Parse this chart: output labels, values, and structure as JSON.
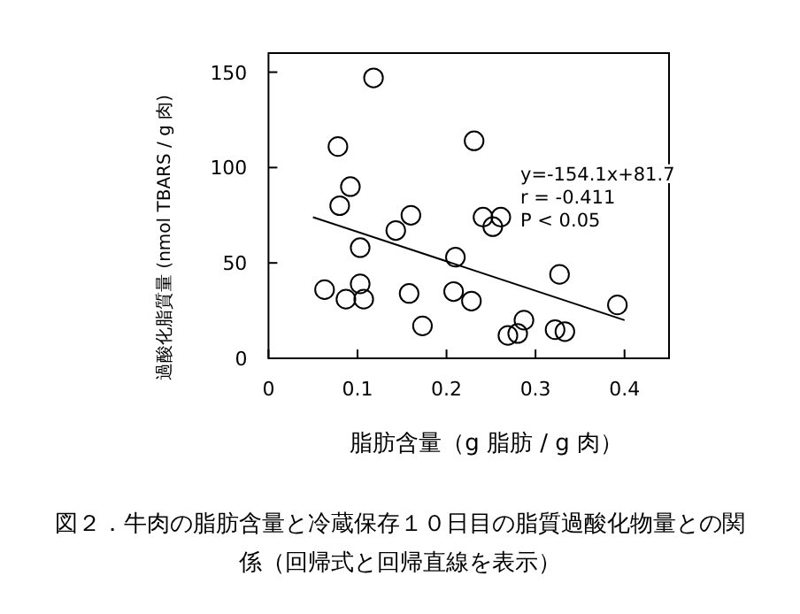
{
  "chart_data": {
    "type": "scatter",
    "title": "図２．牛肉の脂肪含量と冷蔵保存１０日目の脂質過酸化物量との関係（回帰式と回帰直線を表示）",
    "xlabel": "脂肪含量（g 脂肪 / g 肉）",
    "ylabel": "過酸化脂質量 (nmol TBARS / g 肉)",
    "xlim": [
      0,
      0.45
    ],
    "ylim": [
      0,
      160
    ],
    "xticks": [
      0,
      0.1,
      0.2,
      0.3,
      0.4
    ],
    "yticks": [
      0,
      50,
      100,
      150
    ],
    "grid": false,
    "annotations": [
      "y=-154.1x+81.7",
      "r = -0.411",
      "P < 0.05"
    ],
    "series": [
      {
        "marker": "circle",
        "color": "#000000",
        "x": [
          0.063,
          0.078,
          0.08,
          0.087,
          0.092,
          0.103,
          0.103,
          0.107,
          0.118,
          0.143,
          0.158,
          0.16,
          0.173,
          0.208,
          0.21,
          0.228,
          0.231,
          0.241,
          0.252,
          0.261,
          0.269,
          0.28,
          0.287,
          0.322,
          0.327,
          0.333,
          0.392
        ],
        "values": [
          36,
          111,
          80,
          31,
          90,
          58,
          39,
          31,
          147,
          67,
          34,
          75,
          17,
          35,
          53,
          30,
          114,
          74,
          69,
          74,
          12,
          13,
          20,
          15,
          44,
          14,
          28
        ]
      },
      {
        "type": "line",
        "color": "#000000",
        "x": [
          0.05,
          0.4
        ],
        "values": [
          74,
          20
        ]
      }
    ]
  }
}
